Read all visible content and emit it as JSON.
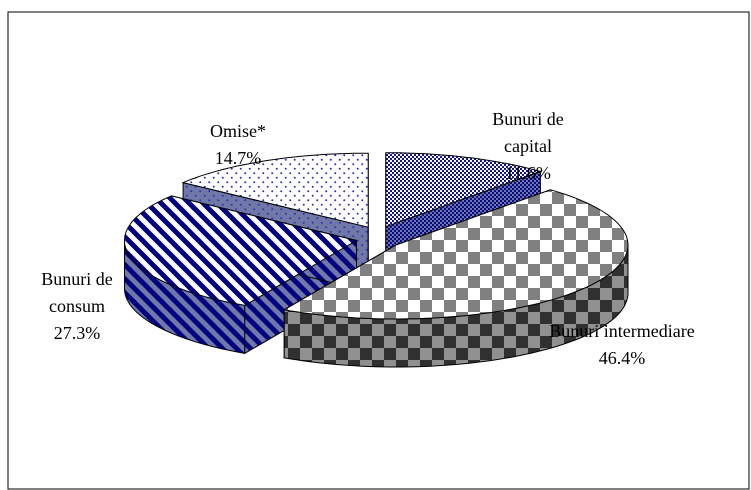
{
  "chart_data": {
    "type": "pie3d",
    "categories": [
      "Bunuri de capital",
      "Bunuri intermediare",
      "Bunuri de consum",
      "Omise*"
    ],
    "values": [
      11.6,
      46.4,
      27.3,
      14.7
    ],
    "value_labels": [
      "11.6%",
      "46.4%",
      "27.3%",
      "14.7%"
    ],
    "colors": [
      "#000080",
      "#808080",
      "#000080",
      "#3030b0"
    ]
  }
}
